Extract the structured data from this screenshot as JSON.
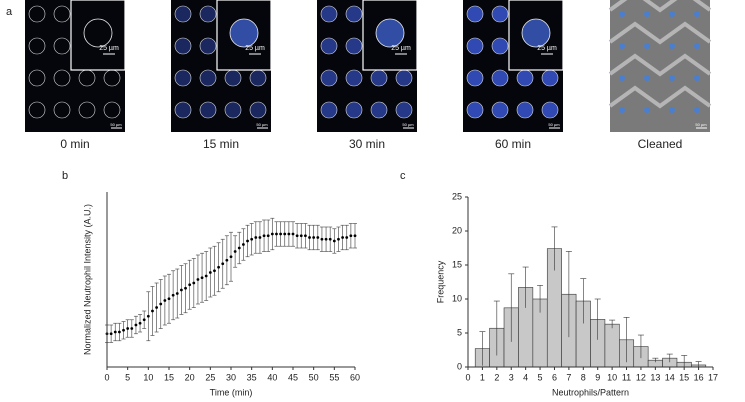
{
  "figure": {
    "panel_labels": [
      "a",
      "b",
      "c"
    ],
    "image_captions": [
      "0 min",
      "15 min",
      "30 min",
      "60 min",
      "Cleaned"
    ],
    "inset_scale_labels": [
      "25 µm",
      "25 µm",
      "25 µm",
      "25 µm"
    ],
    "scale_bar_labels": [
      "50 µm",
      "50 µm",
      "50 µm",
      "50 µm",
      "50 µm"
    ]
  },
  "chart_data": [
    {
      "type": "scatter",
      "xlabel": "Time (min)",
      "ylabel": "Normalized Neutrophil Intensity (A.U.)",
      "x": [
        0,
        1,
        2,
        3,
        4,
        5,
        6,
        7,
        8,
        9,
        10,
        11,
        12,
        13,
        14,
        15,
        16,
        17,
        18,
        19,
        20,
        21,
        22,
        23,
        24,
        25,
        26,
        27,
        28,
        29,
        30,
        31,
        32,
        33,
        34,
        35,
        36,
        37,
        38,
        39,
        40,
        41,
        42,
        43,
        44,
        45,
        46,
        47,
        48,
        49,
        50,
        51,
        52,
        53,
        54,
        55,
        56,
        57,
        58,
        59,
        60
      ],
      "values": [
        0.19,
        0.19,
        0.2,
        0.2,
        0.21,
        0.22,
        0.22,
        0.24,
        0.25,
        0.27,
        0.29,
        0.32,
        0.34,
        0.36,
        0.38,
        0.39,
        0.41,
        0.42,
        0.44,
        0.45,
        0.47,
        0.48,
        0.5,
        0.51,
        0.52,
        0.54,
        0.55,
        0.57,
        0.59,
        0.61,
        0.63,
        0.66,
        0.68,
        0.7,
        0.72,
        0.73,
        0.74,
        0.74,
        0.75,
        0.75,
        0.76,
        0.76,
        0.76,
        0.76,
        0.76,
        0.76,
        0.75,
        0.75,
        0.75,
        0.74,
        0.74,
        0.74,
        0.73,
        0.73,
        0.73,
        0.72,
        0.73,
        0.74,
        0.74,
        0.75,
        0.75
      ],
      "errors": [
        0.05,
        0.05,
        0.05,
        0.05,
        0.05,
        0.05,
        0.05,
        0.05,
        0.05,
        0.05,
        0.14,
        0.14,
        0.14,
        0.14,
        0.14,
        0.14,
        0.14,
        0.14,
        0.14,
        0.14,
        0.14,
        0.14,
        0.14,
        0.14,
        0.14,
        0.14,
        0.14,
        0.14,
        0.14,
        0.14,
        0.14,
        0.09,
        0.09,
        0.09,
        0.09,
        0.09,
        0.09,
        0.09,
        0.09,
        0.09,
        0.09,
        0.07,
        0.07,
        0.07,
        0.07,
        0.07,
        0.07,
        0.07,
        0.07,
        0.07,
        0.07,
        0.07,
        0.07,
        0.07,
        0.07,
        0.07,
        0.07,
        0.07,
        0.07,
        0.07,
        0.07
      ],
      "color": "#000000",
      "xlim": [
        0,
        60
      ],
      "xticks": [
        0,
        5,
        10,
        15,
        20,
        25,
        30,
        35,
        40,
        45,
        50,
        55,
        60
      ],
      "ylim": [
        0,
        1
      ],
      "yticks": []
    },
    {
      "type": "histogram",
      "xlabel": "Neutrophils/Pattern",
      "ylabel": "Frequency",
      "bins": [
        0.5,
        1.5,
        2.5,
        3.5,
        4.5,
        5.5,
        6.5,
        7.5,
        8.5,
        9.5,
        10.5,
        11.5,
        12.5,
        13.5,
        14.5,
        15.5,
        16.5
      ],
      "values": [
        2.7,
        5.7,
        8.7,
        11.7,
        10,
        17.4,
        10.7,
        9.7,
        7,
        6.3,
        4,
        3,
        1,
        1.3,
        0.7,
        0.3
      ],
      "errors": [
        2.5,
        4,
        5,
        3,
        2,
        3.2,
        6.3,
        3.3,
        3,
        0.6,
        3.3,
        1.7,
        0.3,
        0.6,
        1,
        0.5
      ],
      "color": "#c8c8c8",
      "xlim": [
        0,
        17
      ],
      "xticks": [
        0,
        1,
        2,
        3,
        4,
        5,
        6,
        7,
        8,
        9,
        10,
        11,
        12,
        13,
        14,
        15,
        16,
        17
      ],
      "ylim": [
        0,
        25
      ],
      "yticks": [
        0,
        5,
        10,
        15,
        20,
        25
      ]
    }
  ]
}
